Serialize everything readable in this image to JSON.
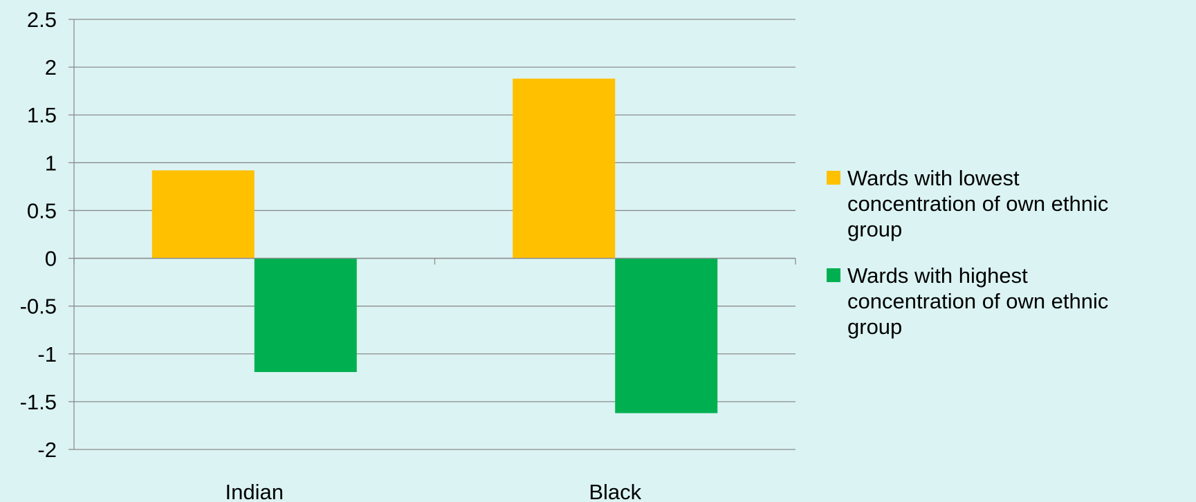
{
  "chart_data": {
    "type": "bar",
    "categories": [
      "Indian",
      "Black"
    ],
    "series": [
      {
        "name": "Wards with lowest concentration of own ethnic group",
        "color": "#ffc000",
        "values": [
          0.92,
          1.88
        ]
      },
      {
        "name": "Wards with highest concentration of own ethnic group",
        "color": "#00b050",
        "values": [
          -1.19,
          -1.62
        ]
      }
    ],
    "ylim": [
      -2,
      2.5
    ],
    "yticks": [
      "-2",
      "-1.5",
      "-1",
      "-0.5",
      "0",
      "0.5",
      "1",
      "1.5",
      "2",
      "2.5"
    ],
    "grid": true,
    "legend_position": "right",
    "legend_lines": [
      [
        "Wards with lowest",
        "concentration of own ethnic",
        "group"
      ],
      [
        "Wards with highest",
        "concentration of own ethnic",
        "group"
      ]
    ]
  }
}
